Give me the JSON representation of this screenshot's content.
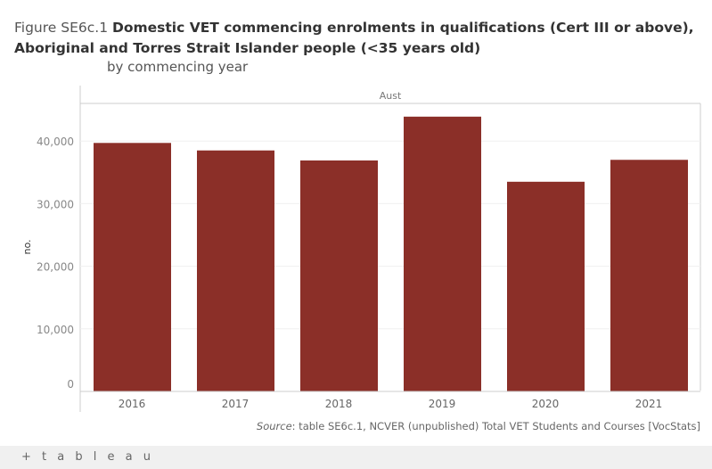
{
  "title": {
    "prefix": "Figure SE6c.1 ",
    "main": "Domestic VET commencing enrolments in qualifications (Cert III or above), Aboriginal and Torres Strait Islander people (<35 years old)",
    "subtitle": "by commencing year"
  },
  "footer": {
    "source_label": "Source",
    "source_text": ": table SE6c.1, NCVER (unpublished) Total VET Students and Courses [VocStats]"
  },
  "branding": "+ t a b l e a u",
  "chart_data": {
    "type": "bar",
    "panel": "Aust",
    "categories": [
      "2016",
      "2017",
      "2018",
      "2019",
      "2020",
      "2021"
    ],
    "values": [
      39700,
      38500,
      36900,
      43900,
      33500,
      37000
    ],
    "ylabel": "no.",
    "xlabel": "",
    "ylim": [
      0,
      45000
    ],
    "yticks": [
      0,
      10000,
      20000,
      30000,
      40000
    ],
    "ytick_labels": [
      "0",
      "10,000",
      "20,000",
      "30,000",
      "40,000"
    ],
    "grid": true,
    "bar_color": "#8b2f28"
  }
}
